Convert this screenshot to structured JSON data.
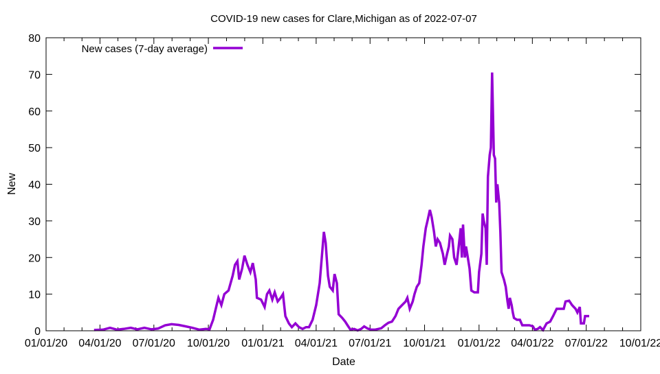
{
  "chart_data": {
    "type": "line",
    "title": "COVID-19 new cases for Clare,Michigan as of 2022-07-07",
    "xlabel": "Date",
    "ylabel": "New",
    "x_units": "days since 2020-01-01",
    "xlim": [
      0,
      1004
    ],
    "ylim": [
      0,
      80
    ],
    "grid": false,
    "legend_position": "top-left",
    "x_ticks": [
      {
        "day": 0,
        "label": "01/01/20"
      },
      {
        "day": 91,
        "label": "04/01/20"
      },
      {
        "day": 182,
        "label": "07/01/20"
      },
      {
        "day": 274,
        "label": "10/01/20"
      },
      {
        "day": 366,
        "label": "01/01/21"
      },
      {
        "day": 456,
        "label": "04/01/21"
      },
      {
        "day": 547,
        "label": "07/01/21"
      },
      {
        "day": 639,
        "label": "10/01/21"
      },
      {
        "day": 731,
        "label": "01/01/22"
      },
      {
        "day": 821,
        "label": "04/01/22"
      },
      {
        "day": 912,
        "label": "07/01/22"
      },
      {
        "day": 1004,
        "label": "10/01/22"
      }
    ],
    "y_ticks": [
      "0",
      "10",
      "20",
      "30",
      "40",
      "50",
      "60",
      "70",
      "80"
    ],
    "series": [
      {
        "name": "New cases (7-day average)",
        "color": "#9400d3",
        "points": [
          [
            81,
            0.2
          ],
          [
            96,
            0.3
          ],
          [
            108,
            0.8
          ],
          [
            120,
            0.3
          ],
          [
            131,
            0.5
          ],
          [
            143,
            0.8
          ],
          [
            154,
            0.4
          ],
          [
            166,
            0.8
          ],
          [
            178,
            0.4
          ],
          [
            189,
            0.6
          ],
          [
            201,
            1.5
          ],
          [
            212,
            1.8
          ],
          [
            224,
            1.6
          ],
          [
            236,
            1.2
          ],
          [
            247,
            0.8
          ],
          [
            259,
            0.3
          ],
          [
            270,
            0.5
          ],
          [
            276,
            0.4
          ],
          [
            282,
            3
          ],
          [
            288,
            7
          ],
          [
            291,
            9
          ],
          [
            296,
            7
          ],
          [
            301,
            10
          ],
          [
            308,
            11
          ],
          [
            315,
            15
          ],
          [
            319,
            18
          ],
          [
            323,
            19
          ],
          [
            326,
            14
          ],
          [
            331,
            17
          ],
          [
            335,
            20.5
          ],
          [
            340,
            18
          ],
          [
            345,
            16
          ],
          [
            349,
            18.5
          ],
          [
            354,
            14
          ],
          [
            356,
            9
          ],
          [
            363,
            8.5
          ],
          [
            369,
            6.5
          ],
          [
            373,
            10
          ],
          [
            377,
            11
          ],
          [
            382,
            8.5
          ],
          [
            386,
            10.5
          ],
          [
            391,
            8
          ],
          [
            396,
            9
          ],
          [
            400,
            10
          ],
          [
            404,
            4
          ],
          [
            410,
            2
          ],
          [
            415,
            1
          ],
          [
            421,
            2
          ],
          [
            427,
            1
          ],
          [
            433,
            0.5
          ],
          [
            439,
            1
          ],
          [
            444,
            1
          ],
          [
            450,
            3
          ],
          [
            456,
            7
          ],
          [
            462,
            13
          ],
          [
            465,
            19
          ],
          [
            469,
            27
          ],
          [
            472,
            24
          ],
          [
            476,
            15
          ],
          [
            479,
            12
          ],
          [
            484,
            11
          ],
          [
            487,
            15.5
          ],
          [
            491,
            13
          ],
          [
            494,
            4.5
          ],
          [
            500,
            3.5
          ],
          [
            505,
            2.5
          ],
          [
            509,
            1.5
          ],
          [
            514,
            0.3
          ],
          [
            520,
            0.5
          ],
          [
            526,
            0.1
          ],
          [
            532,
            0.5
          ],
          [
            537,
            1.2
          ],
          [
            543,
            0.6
          ],
          [
            549,
            0.3
          ],
          [
            555,
            0.3
          ],
          [
            561,
            0.5
          ],
          [
            566,
            0.7
          ],
          [
            572,
            1.5
          ],
          [
            578,
            2.2
          ],
          [
            584,
            2.5
          ],
          [
            590,
            4
          ],
          [
            595,
            6
          ],
          [
            601,
            7
          ],
          [
            607,
            8
          ],
          [
            610,
            9
          ],
          [
            614,
            6
          ],
          [
            619,
            8
          ],
          [
            622,
            10
          ],
          [
            626,
            12
          ],
          [
            630,
            13
          ],
          [
            634,
            18
          ],
          [
            637,
            23
          ],
          [
            641,
            28
          ],
          [
            644,
            30
          ],
          [
            648,
            33
          ],
          [
            651,
            31
          ],
          [
            655,
            27
          ],
          [
            658,
            23
          ],
          [
            661,
            25
          ],
          [
            665,
            24
          ],
          [
            670,
            21
          ],
          [
            673,
            18
          ],
          [
            677,
            21
          ],
          [
            680,
            23
          ],
          [
            682,
            26
          ],
          [
            686,
            25
          ],
          [
            689,
            20
          ],
          [
            693,
            18
          ],
          [
            696,
            22
          ],
          [
            700,
            28
          ],
          [
            702,
            20
          ],
          [
            704,
            29
          ],
          [
            707,
            20
          ],
          [
            709,
            23
          ],
          [
            711,
            21
          ],
          [
            715,
            17
          ],
          [
            718,
            11
          ],
          [
            723,
            10.5
          ],
          [
            729,
            10.5
          ],
          [
            731,
            16
          ],
          [
            735,
            21
          ],
          [
            737,
            32
          ],
          [
            739,
            30
          ],
          [
            742,
            28
          ],
          [
            744,
            18
          ],
          [
            746,
            42
          ],
          [
            749,
            48
          ],
          [
            751,
            50
          ],
          [
            753,
            70.5
          ],
          [
            756,
            48
          ],
          [
            758,
            47
          ],
          [
            760,
            35
          ],
          [
            762,
            40
          ],
          [
            765,
            35
          ],
          [
            767,
            27
          ],
          [
            769,
            16
          ],
          [
            773,
            14
          ],
          [
            776,
            12
          ],
          [
            779,
            8
          ],
          [
            781,
            6
          ],
          [
            783,
            9
          ],
          [
            786,
            7
          ],
          [
            788,
            5
          ],
          [
            790,
            3.5
          ],
          [
            795,
            3
          ],
          [
            800,
            3
          ],
          [
            804,
            1.5
          ],
          [
            810,
            1.5
          ],
          [
            816,
            1.5
          ],
          [
            822,
            1.2
          ],
          [
            825,
            0.3
          ],
          [
            830,
            0.5
          ],
          [
            834,
            1
          ],
          [
            839,
            0.2
          ],
          [
            845,
            2
          ],
          [
            851,
            2.5
          ],
          [
            856,
            4
          ],
          [
            862,
            6
          ],
          [
            868,
            6
          ],
          [
            874,
            6
          ],
          [
            877,
            8
          ],
          [
            883,
            8.2
          ],
          [
            888,
            7
          ],
          [
            894,
            6
          ],
          [
            897,
            5
          ],
          [
            901,
            6.5
          ],
          [
            903,
            2
          ],
          [
            908,
            2
          ],
          [
            910,
            4
          ],
          [
            917,
            4
          ]
        ]
      }
    ]
  }
}
